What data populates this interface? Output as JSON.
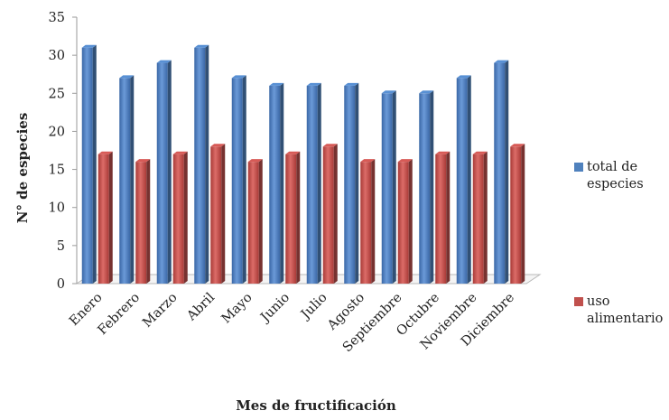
{
  "chart_data": {
    "type": "bar",
    "variant": "3d-clustered-column",
    "title": "",
    "xlabel": "Mes de fructificación",
    "ylabel": "N° de especies",
    "ylim": [
      0,
      35
    ],
    "yticks": [
      0,
      5,
      10,
      15,
      20,
      25,
      30,
      35
    ],
    "grid": false,
    "legend_position": "right",
    "categories": [
      "Enero",
      "Febrero",
      "Marzo",
      "Abril",
      "Mayo",
      "Junio",
      "Julio",
      "Agosto",
      "Septiembre",
      "Octubre",
      "Noviembre",
      "Diciembre"
    ],
    "series": [
      {
        "name": "total de especies",
        "color": "#4f81bd",
        "values": [
          31,
          27,
          29,
          31,
          27,
          26,
          26,
          26,
          25,
          25,
          27,
          29
        ]
      },
      {
        "name": "uso alimentario",
        "color": "#c0504d",
        "values": [
          17,
          16,
          17,
          18,
          16,
          17,
          18,
          16,
          16,
          17,
          17,
          18
        ]
      }
    ]
  }
}
